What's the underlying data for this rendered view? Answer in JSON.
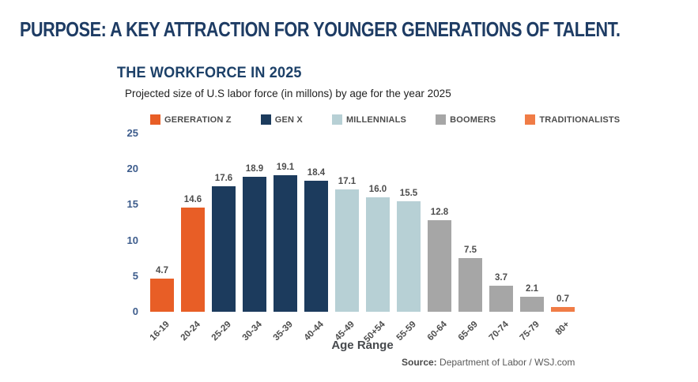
{
  "page_title": "PURPOSE: A KEY ATTRACTION FOR YOUNGER GENERATIONS OF TALENT.",
  "chart": {
    "title": "THE WORKFORCE IN 2025",
    "subtitle": "Projected size of U.S labor force (in millons) by age for the year 2025",
    "xlabel": "Age Range",
    "source_label": "Source:",
    "source_text": " Department of Labor / WSJ.com"
  },
  "colors": {
    "title_navy": "#1E3C64",
    "gen_z_orange": "#E85E26",
    "gen_x_navy": "#1C3B5D",
    "millennials_blue": "#B7D0D5",
    "boomers_gray": "#A6A6A6",
    "traditionalists_orange": "#F07C46",
    "axis_label_blue": "#3D5C8C",
    "value_label_gray": "#4D4D4D"
  },
  "chart_data": {
    "type": "bar",
    "title": "THE WORKFORCE IN 2025",
    "subtitle": "Projected size of U.S labor force (in millons) by age for the year 2025",
    "categories": [
      "16-19",
      "20-24",
      "25-29",
      "30-34",
      "35-39",
      "40-44",
      "45-49",
      "50+54",
      "55-59",
      "60-64",
      "65-69",
      "70-74",
      "75-79",
      "80+"
    ],
    "values": [
      4.7,
      14.6,
      17.6,
      18.9,
      19.1,
      18.4,
      17.1,
      16.0,
      15.5,
      12.8,
      7.5,
      3.7,
      2.1,
      0.7
    ],
    "display_values": [
      "4.7",
      "14.6",
      "17.6",
      "18.9",
      "19.1",
      "18.4",
      "17.1",
      "16.0",
      "15.5",
      "12.8",
      "7.5",
      "3.7",
      "2.1",
      "0.7"
    ],
    "bar_colors": [
      "#E85E26",
      "#E85E26",
      "#1C3B5D",
      "#1C3B5D",
      "#1C3B5D",
      "#1C3B5D",
      "#B7D0D5",
      "#B7D0D5",
      "#B7D0D5",
      "#A6A6A6",
      "#A6A6A6",
      "#A6A6A6",
      "#A6A6A6",
      "#F07C46"
    ],
    "xlabel": "Age Range",
    "ylabel": "",
    "ylim": [
      0,
      25
    ],
    "yticks": [
      "25",
      "20",
      "15",
      "10",
      "5",
      "0"
    ],
    "grid": false,
    "legend_position": "top",
    "legend": [
      {
        "label": "GERERATION Z",
        "color": "#E85E26"
      },
      {
        "label": "GEN X",
        "color": "#1C3B5D"
      },
      {
        "label": "MILLENNIALS",
        "color": "#B7D0D5"
      },
      {
        "label": "BOOMERS",
        "color": "#A6A6A6"
      },
      {
        "label": "TRADITIONALISTS",
        "color": "#F07C46"
      }
    ]
  }
}
